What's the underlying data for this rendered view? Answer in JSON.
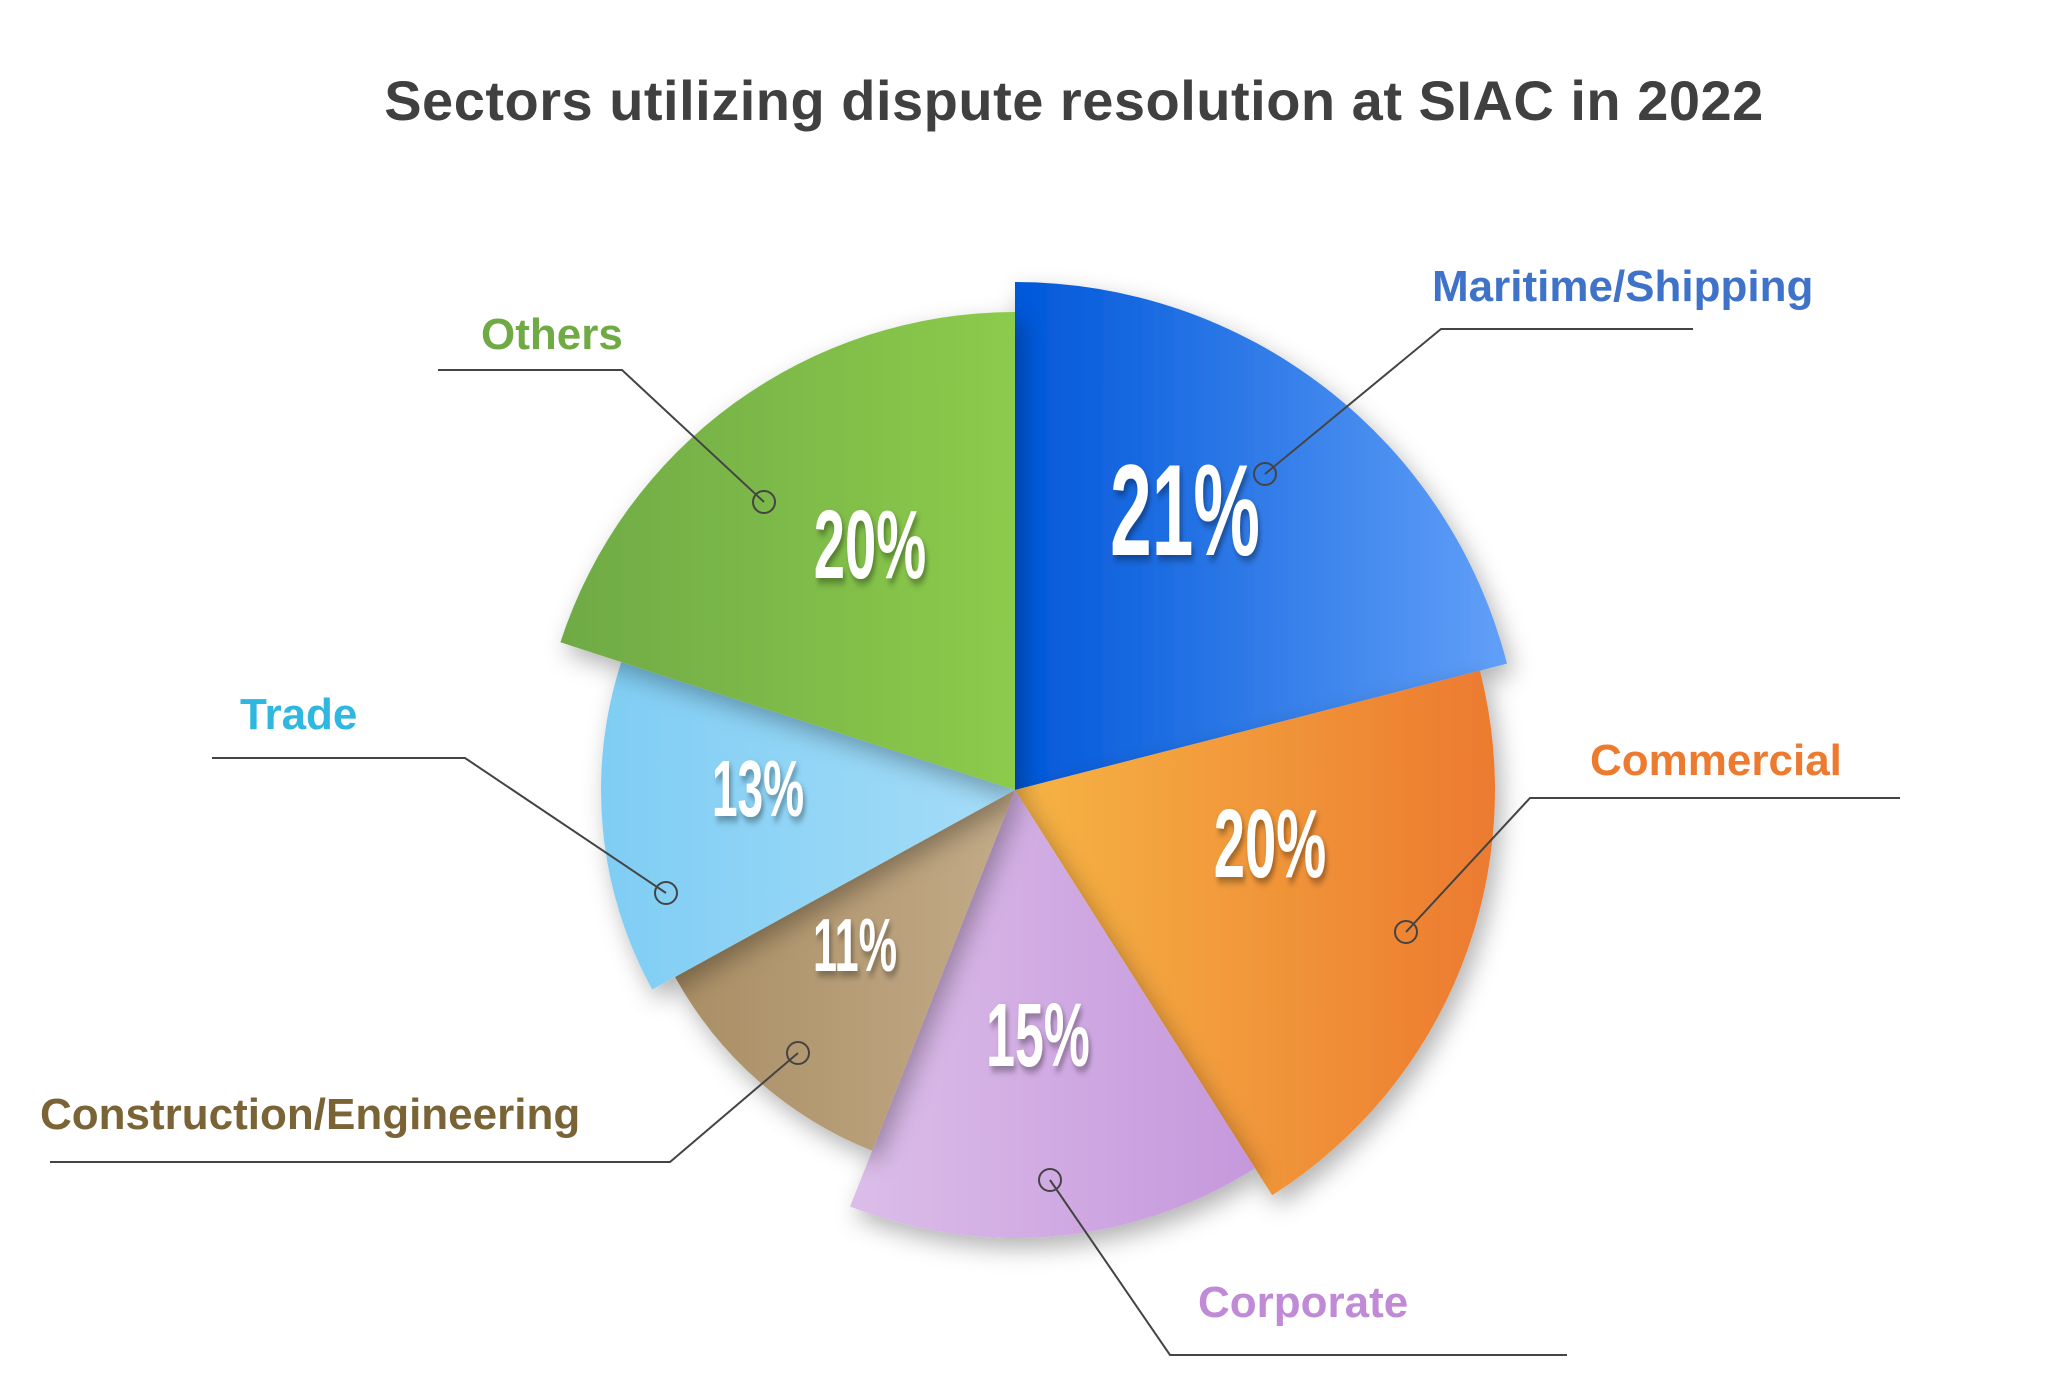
{
  "title": "Sectors utilizing dispute resolution at SIAC in 2022",
  "chart_data": {
    "type": "pie",
    "title": "Sectors utilizing dispute resolution at SIAC in 2022",
    "categories": [
      "Maritime/Shipping",
      "Commercial",
      "Corporate",
      "Construction/Engineering",
      "Trade",
      "Others"
    ],
    "values": [
      21,
      20,
      15,
      11,
      13,
      20
    ],
    "unit": "%",
    "legend_position": "callout labels"
  },
  "slices": [
    {
      "label": "Maritime/Shipping",
      "value": 21,
      "pct_text": "21%",
      "color_a": "#0057d9",
      "color_b": "#62a0f8",
      "label_color": "#3f72c9",
      "radius": 508
    },
    {
      "label": "Commercial",
      "value": 20,
      "pct_text": "20%",
      "color_a": "#f6b445",
      "color_b": "#ec7a2f",
      "label_color": "#ec7a2f",
      "radius": 480
    },
    {
      "label": "Corporate",
      "value": 15,
      "pct_text": "15%",
      "color_a": "#dcbde9",
      "color_b": "#c598dc",
      "label_color": "#c08ad6",
      "radius": 448
    },
    {
      "label": "Construction/Engineering",
      "value": 11,
      "pct_text": "11%",
      "color_a": "#a98e64",
      "color_b": "#c3ab88",
      "label_color": "#7a6435",
      "radius": 388
    },
    {
      "label": "Trade",
      "value": 13,
      "pct_text": "13%",
      "color_a": "#7fcdf4",
      "color_b": "#a5ddf8",
      "label_color": "#2fb7e0",
      "radius": 414
    },
    {
      "label": "Others",
      "value": 20,
      "pct_text": "20%",
      "color_a": "#6faa45",
      "color_b": "#8ccb4c",
      "label_color": "#6faa45",
      "radius": 478
    }
  ]
}
